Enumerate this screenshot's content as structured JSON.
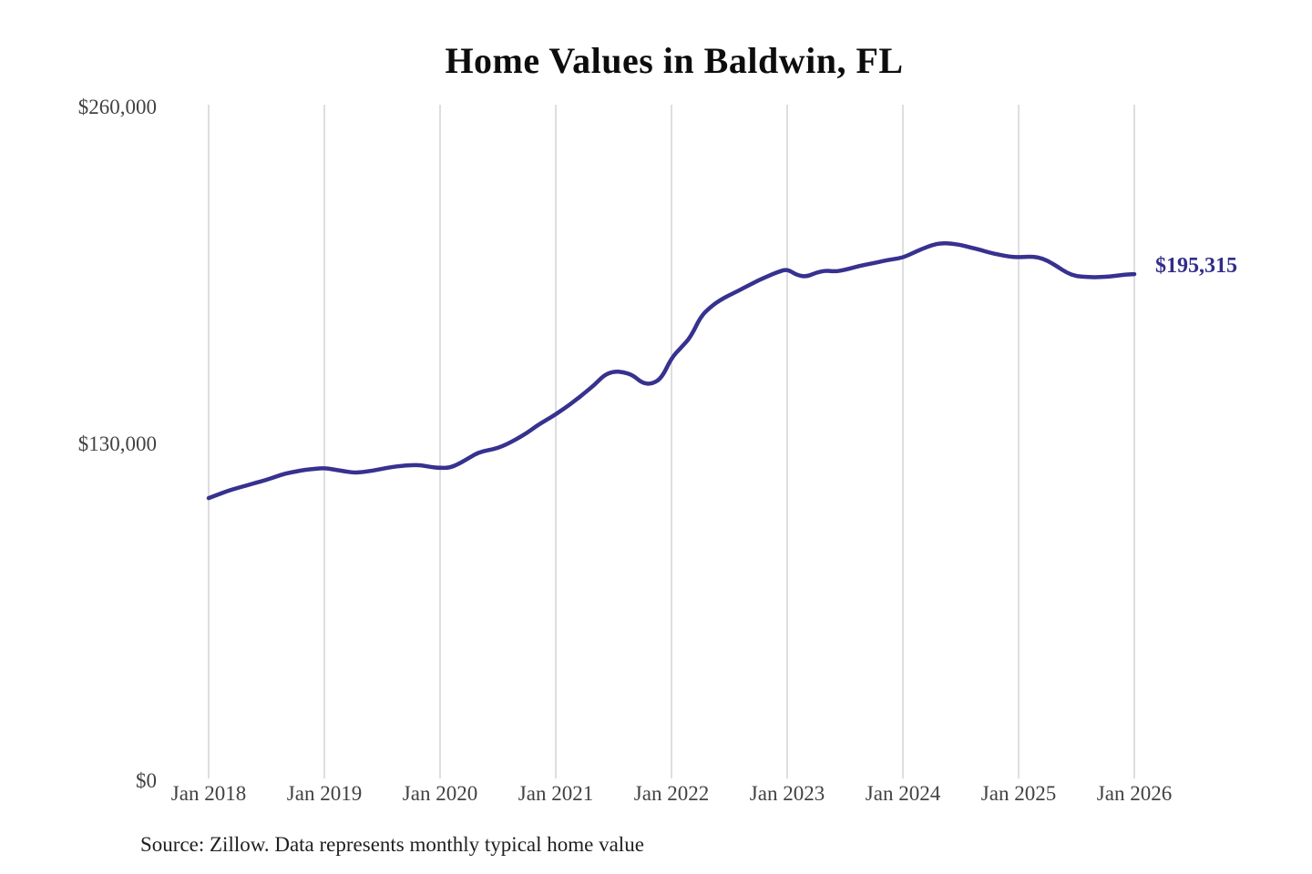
{
  "page": {
    "title": "Home Values in Baldwin, FL",
    "source_note": "Source: Zillow. Data represents monthly typical home value"
  },
  "chart_data": {
    "type": "line",
    "title": "Home Values in Baldwin, FL",
    "xlabel": "",
    "ylabel": "",
    "x_start": "Jan 2018",
    "x_frequency": "monthly",
    "x_tick_labels": [
      "Jan 2018",
      "Jan 2019",
      "Jan 2020",
      "Jan 2021",
      "Jan 2022",
      "Jan 2023",
      "Jan 2024",
      "Jan 2025",
      "Jan 2026"
    ],
    "y_tick_values": [
      0,
      130000,
      260000
    ],
    "y_tick_labels": [
      "$0",
      "$130,000",
      "$260,000"
    ],
    "ylim": [
      0,
      260000
    ],
    "grid": "vertical",
    "gridline_color": "#cccccc",
    "line_color": "#37318f",
    "end_label": "$195,315",
    "end_label_color": "#322c8a",
    "end_value": 195315,
    "series": [
      {
        "name": "Monthly typical home value",
        "values": [
          108900,
          110300,
          111700,
          112800,
          113800,
          114900,
          115900,
          117200,
          118400,
          119100,
          119800,
          120200,
          120500,
          119900,
          119300,
          118700,
          118900,
          119500,
          120200,
          120900,
          121300,
          121600,
          121600,
          120900,
          120500,
          120600,
          122200,
          124400,
          126500,
          127400,
          128200,
          129800,
          131800,
          134000,
          136700,
          139000,
          141200,
          143800,
          146500,
          149500,
          152500,
          156300,
          157800,
          157500,
          156300,
          153200,
          152900,
          155300,
          163000,
          167000,
          171100,
          178800,
          182500,
          185200,
          187200,
          189000,
          191000,
          192900,
          194500,
          196100,
          197300,
          194900,
          194300,
          195900,
          196700,
          196300,
          197000,
          198000,
          198900,
          199600,
          200400,
          201100,
          201700,
          203400,
          205100,
          206500,
          207300,
          207100,
          206600,
          205600,
          204700,
          203600,
          202800,
          202100,
          201800,
          202100,
          201900,
          200500,
          198300,
          195800,
          194500,
          194200,
          194100,
          194300,
          194600,
          195100,
          195315
        ]
      }
    ]
  }
}
